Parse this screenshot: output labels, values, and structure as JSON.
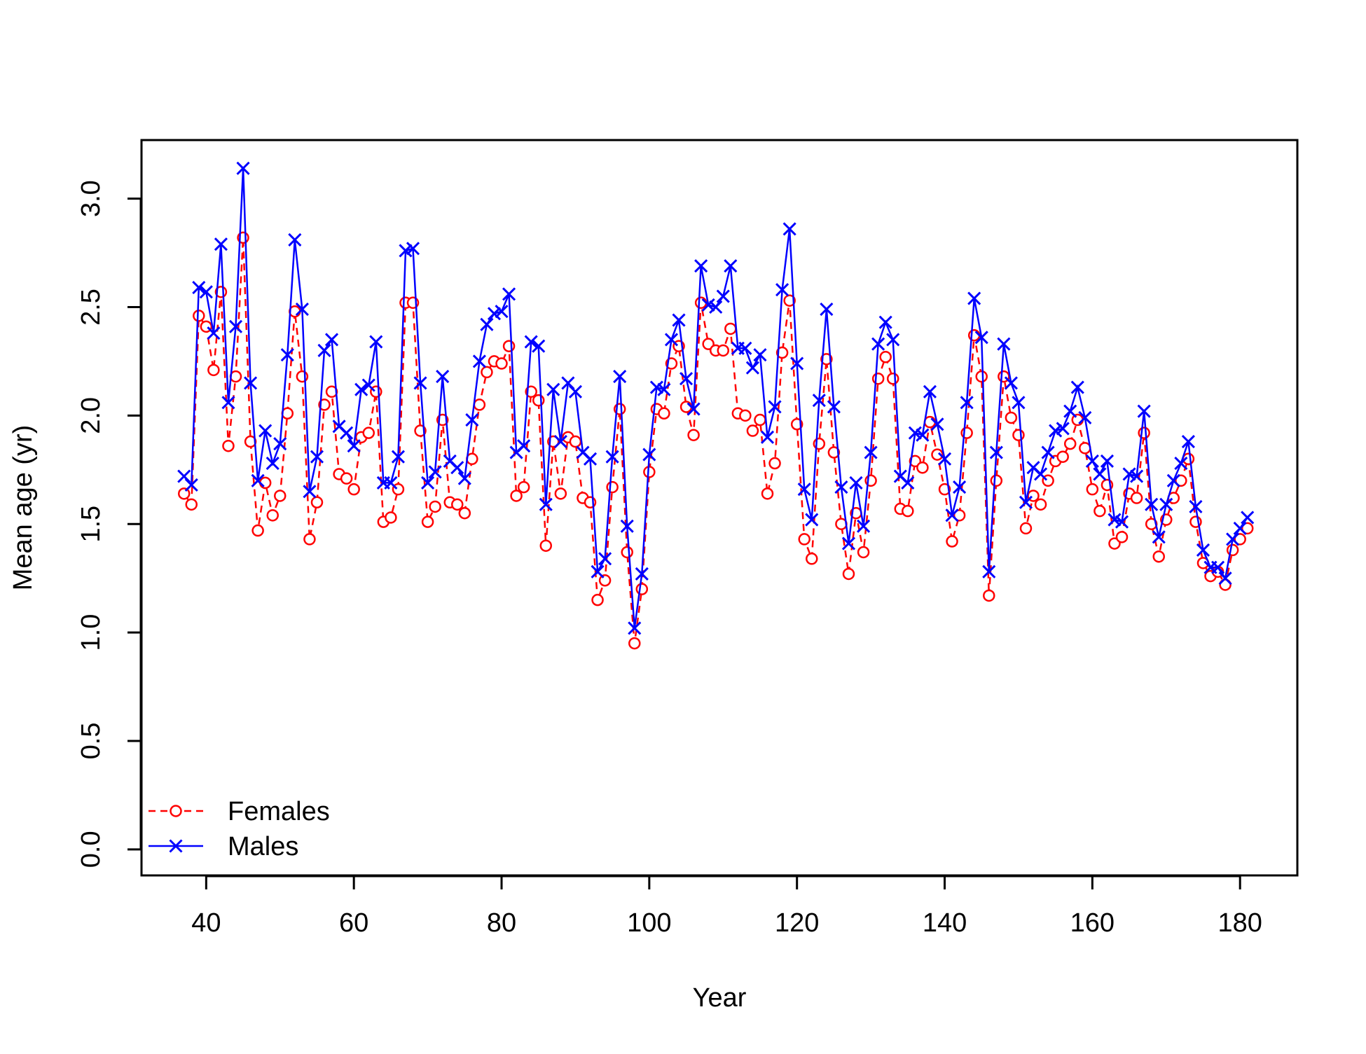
{
  "chart_data": {
    "type": "line",
    "title": "",
    "xlabel": "Year",
    "ylabel": "Mean age (yr)",
    "xlim": [
      31.24,
      187.76
    ],
    "ylim": [
      -0.12,
      3.27
    ],
    "x_ticks": [
      40,
      60,
      80,
      100,
      120,
      140,
      160,
      180
    ],
    "x_tick_labels": [
      "40",
      "60",
      "80",
      "100",
      "120",
      "140",
      "160",
      "180"
    ],
    "y_ticks": [
      0.0,
      0.5,
      1.0,
      1.5,
      2.0,
      2.5,
      3.0
    ],
    "y_tick_labels": [
      "0.0",
      "0.5",
      "1.0",
      "1.5",
      "2.0",
      "2.5",
      "3.0"
    ],
    "grid": false,
    "legend_position": "bottom-left",
    "x": [
      37,
      38,
      39,
      40,
      41,
      42,
      43,
      44,
      45,
      46,
      47,
      48,
      49,
      50,
      51,
      52,
      53,
      54,
      55,
      56,
      57,
      58,
      59,
      60,
      61,
      62,
      63,
      64,
      65,
      66,
      67,
      68,
      69,
      70,
      71,
      72,
      73,
      74,
      75,
      76,
      77,
      78,
      79,
      80,
      81,
      82,
      83,
      84,
      85,
      86,
      87,
      88,
      89,
      90,
      91,
      92,
      93,
      94,
      95,
      96,
      97,
      98,
      99,
      100,
      101,
      102,
      103,
      104,
      105,
      106,
      107,
      108,
      109,
      110,
      111,
      112,
      113,
      114,
      115,
      116,
      117,
      118,
      119,
      120,
      121,
      122,
      123,
      124,
      125,
      126,
      127,
      128,
      129,
      130,
      131,
      132,
      133,
      134,
      135,
      136,
      137,
      138,
      139,
      140,
      141,
      142,
      143,
      144,
      145,
      146,
      147,
      148,
      149,
      150,
      151,
      152,
      153,
      154,
      155,
      156,
      157,
      158,
      159,
      160,
      161,
      162,
      163,
      164,
      165,
      166,
      167,
      168,
      169,
      170,
      171,
      172,
      173,
      174,
      175,
      176,
      177,
      178,
      179,
      180,
      181
    ],
    "series": [
      {
        "name": "Females",
        "color": "#ff0000",
        "line_style": "dashed",
        "marker": "circle",
        "values": [
          1.64,
          1.59,
          2.46,
          2.41,
          2.21,
          2.57,
          1.86,
          2.18,
          2.82,
          1.88,
          1.47,
          1.69,
          1.54,
          1.63,
          2.01,
          2.48,
          2.18,
          1.43,
          1.6,
          2.05,
          2.11,
          1.73,
          1.71,
          1.66,
          1.9,
          1.92,
          2.11,
          1.51,
          1.53,
          1.66,
          2.52,
          2.52,
          1.93,
          1.51,
          1.58,
          1.98,
          1.6,
          1.59,
          1.55,
          1.8,
          2.05,
          2.2,
          2.25,
          2.24,
          2.32,
          1.63,
          1.67,
          2.11,
          2.07,
          1.4,
          1.88,
          1.64,
          1.9,
          1.88,
          1.62,
          1.6,
          1.15,
          1.24,
          1.67,
          2.03,
          1.37,
          0.95,
          1.2,
          1.74,
          2.03,
          2.01,
          2.24,
          2.32,
          2.04,
          1.91,
          2.52,
          2.33,
          2.3,
          2.3,
          2.4,
          2.01,
          2.0,
          1.93,
          1.98,
          1.64,
          1.78,
          2.29,
          2.53,
          1.96,
          1.43,
          1.34,
          1.87,
          2.26,
          1.83,
          1.5,
          1.27,
          1.55,
          1.37,
          1.7,
          2.17,
          2.27,
          2.17,
          1.57,
          1.56,
          1.79,
          1.76,
          1.97,
          1.82,
          1.66,
          1.42,
          1.54,
          1.92,
          2.37,
          2.18,
          1.17,
          1.7,
          2.18,
          1.99,
          1.91,
          1.48,
          1.63,
          1.59,
          1.7,
          1.79,
          1.81,
          1.87,
          1.98,
          1.85,
          1.66,
          1.56,
          1.68,
          1.41,
          1.44,
          1.64,
          1.62,
          1.92,
          1.5,
          1.35,
          1.52,
          1.62,
          1.7,
          1.8,
          1.51,
          1.32,
          1.26,
          1.28,
          1.22,
          1.38,
          1.43,
          1.48
        ]
      },
      {
        "name": "Males",
        "color": "#0000ff",
        "line_style": "solid",
        "marker": "x",
        "values": [
          1.72,
          1.68,
          2.59,
          2.57,
          2.38,
          2.79,
          2.06,
          2.41,
          3.14,
          2.15,
          1.7,
          1.93,
          1.78,
          1.87,
          2.28,
          2.81,
          2.49,
          1.65,
          1.81,
          2.3,
          2.35,
          1.95,
          1.92,
          1.86,
          2.12,
          2.14,
          2.34,
          1.69,
          1.69,
          1.81,
          2.76,
          2.77,
          2.15,
          1.69,
          1.74,
          2.18,
          1.79,
          1.76,
          1.71,
          1.98,
          2.25,
          2.42,
          2.47,
          2.48,
          2.56,
          1.83,
          1.86,
          2.34,
          2.32,
          1.59,
          2.12,
          1.88,
          2.15,
          2.11,
          1.83,
          1.8,
          1.28,
          1.34,
          1.81,
          2.18,
          1.49,
          1.02,
          1.27,
          1.82,
          2.13,
          2.12,
          2.35,
          2.44,
          2.17,
          2.03,
          2.69,
          2.51,
          2.5,
          2.55,
          2.69,
          2.31,
          2.31,
          2.22,
          2.28,
          1.9,
          2.04,
          2.58,
          2.86,
          2.24,
          1.66,
          1.52,
          2.07,
          2.49,
          2.04,
          1.67,
          1.41,
          1.69,
          1.49,
          1.83,
          2.33,
          2.43,
          2.35,
          1.72,
          1.69,
          1.92,
          1.91,
          2.11,
          1.96,
          1.8,
          1.54,
          1.67,
          2.06,
          2.54,
          2.36,
          1.28,
          1.83,
          2.33,
          2.15,
          2.06,
          1.6,
          1.76,
          1.73,
          1.83,
          1.93,
          1.94,
          2.02,
          2.13,
          1.99,
          1.79,
          1.73,
          1.79,
          1.52,
          1.51,
          1.73,
          1.72,
          2.02,
          1.59,
          1.44,
          1.59,
          1.7,
          1.78,
          1.88,
          1.58,
          1.38,
          1.3,
          1.3,
          1.25,
          1.43,
          1.48,
          1.53
        ]
      }
    ]
  }
}
